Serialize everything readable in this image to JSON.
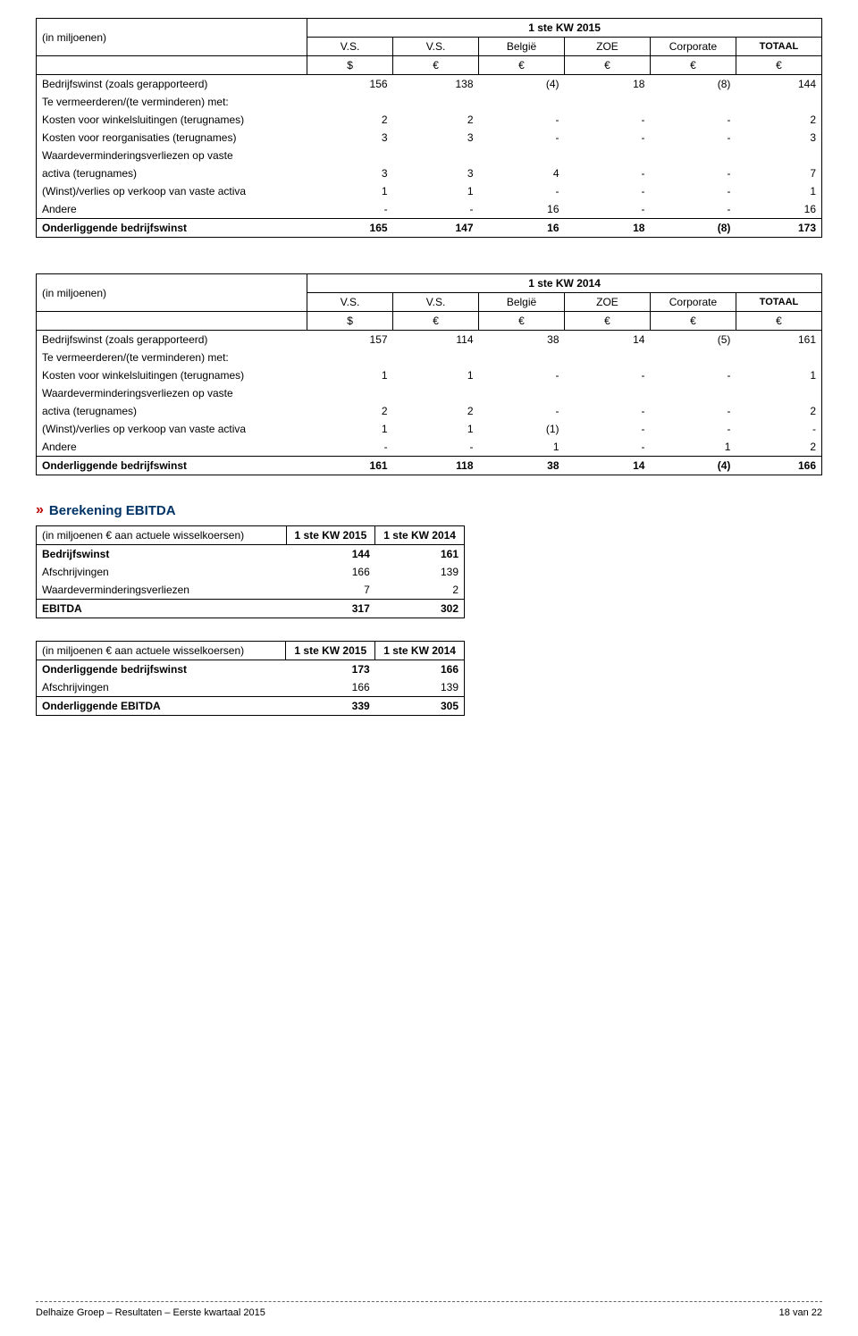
{
  "table1": {
    "caption": "(in miljoenen)",
    "period": "1 ste KW 2015",
    "cols": [
      "V.S.",
      "V.S.",
      "België",
      "ZOE",
      "Corporate",
      "TOTAAL"
    ],
    "currencies": [
      "$",
      "€",
      "€",
      "€",
      "€",
      "€"
    ],
    "rows": [
      {
        "label": "Bedrijfswinst (zoals gerapporteerd)",
        "vals": [
          "156",
          "138",
          "(4)",
          "18",
          "(8)",
          "144"
        ],
        "bold": false,
        "topBorder": true
      },
      {
        "label": "Te vermeerderen/(te verminderen) met:",
        "vals": [
          "",
          "",
          "",
          "",
          "",
          ""
        ],
        "bold": false
      },
      {
        "label": "Kosten voor winkelsluitingen (terugnames)",
        "vals": [
          "2",
          "2",
          "-",
          "-",
          "-",
          "2"
        ],
        "bold": false
      },
      {
        "label": "Kosten voor reorganisaties (terugnames)",
        "vals": [
          "3",
          "3",
          "-",
          "-",
          "-",
          "3"
        ],
        "bold": false
      },
      {
        "label": "Waardeverminderingsverliezen op vaste activa (terugnames)",
        "vals": [
          "3",
          "3",
          "4",
          "-",
          "-",
          "7"
        ],
        "bold": false,
        "wrap": true
      },
      {
        "label": "(Winst)/verlies op verkoop van vaste activa",
        "vals": [
          "1",
          "1",
          "-",
          "-",
          "-",
          "1"
        ],
        "bold": false
      },
      {
        "label": "Andere",
        "vals": [
          "-",
          "-",
          "16",
          "-",
          "-",
          "16"
        ],
        "bold": false
      }
    ],
    "footer": {
      "label": "Onderliggende bedrijfswinst",
      "vals": [
        "165",
        "147",
        "16",
        "18",
        "(8)",
        "173"
      ]
    }
  },
  "table2": {
    "caption": "(in miljoenen)",
    "period": "1 ste KW 2014",
    "cols": [
      "V.S.",
      "V.S.",
      "België",
      "ZOE",
      "Corporate",
      "TOTAAL"
    ],
    "currencies": [
      "$",
      "€",
      "€",
      "€",
      "€",
      "€"
    ],
    "rows": [
      {
        "label": "Bedrijfswinst (zoals gerapporteerd)",
        "vals": [
          "157",
          "114",
          "38",
          "14",
          "(5)",
          "161"
        ],
        "bold": false,
        "topBorder": true
      },
      {
        "label": "Te vermeerderen/(te verminderen) met:",
        "vals": [
          "",
          "",
          "",
          "",
          "",
          ""
        ],
        "bold": false
      },
      {
        "label": "Kosten voor winkelsluitingen (terugnames)",
        "vals": [
          "1",
          "1",
          "-",
          "-",
          "-",
          "1"
        ],
        "bold": false
      },
      {
        "label": "Waardeverminderingsverliezen op vaste activa (terugnames)",
        "vals": [
          "2",
          "2",
          "-",
          "-",
          "-",
          "2"
        ],
        "bold": false,
        "wrap": true
      },
      {
        "label": "(Winst)/verlies op verkoop van vaste activa",
        "vals": [
          "1",
          "1",
          "(1)",
          "-",
          "-",
          "-"
        ],
        "bold": false
      },
      {
        "label": "Andere",
        "vals": [
          "-",
          "-",
          "1",
          "-",
          "1",
          "2"
        ],
        "bold": false
      }
    ],
    "footer": {
      "label": "Onderliggende bedrijfswinst",
      "vals": [
        "161",
        "118",
        "38",
        "14",
        "(4)",
        "166"
      ]
    }
  },
  "section3": {
    "title": "Berekening EBITDA",
    "caption": "(in miljoenen € aan actuele wisselkoersen)",
    "cols": [
      "1 ste KW 2015",
      "1 ste KW 2014"
    ],
    "rows": [
      {
        "label": "Bedrijfswinst",
        "vals": [
          "144",
          "161"
        ],
        "bold": true
      },
      {
        "label": "Afschrijvingen",
        "vals": [
          "166",
          "139"
        ],
        "bold": false
      },
      {
        "label": "Waardeverminderingsverliezen",
        "vals": [
          "7",
          "2"
        ],
        "bold": false
      }
    ],
    "footer": {
      "label": "EBITDA",
      "vals": [
        "317",
        "302"
      ]
    }
  },
  "section4": {
    "caption": "(in miljoenen € aan actuele wisselkoersen)",
    "cols": [
      "1 ste KW 2015",
      "1 ste KW 2014"
    ],
    "rows": [
      {
        "label": "Onderliggende bedrijfswinst",
        "vals": [
          "173",
          "166"
        ],
        "bold": true
      },
      {
        "label": "Afschrijvingen",
        "vals": [
          "166",
          "139"
        ],
        "bold": false
      }
    ],
    "footer": {
      "label": "Onderliggende EBITDA",
      "vals": [
        "339",
        "305"
      ]
    }
  },
  "footer": {
    "left": "Delhaize Groep – Resultaten – Eerste kwartaal 2015",
    "right": "18 van 22"
  }
}
